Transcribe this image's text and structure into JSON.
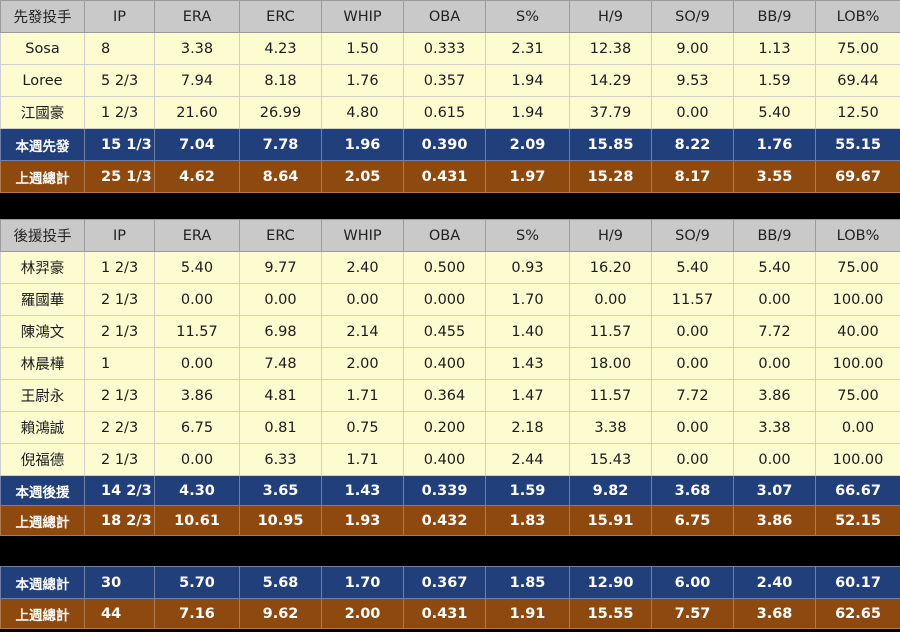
{
  "columns": [
    "IP",
    "ERA",
    "ERC",
    "WHIP",
    "OBA",
    "S%",
    "H/9",
    "SO/9",
    "BB/9",
    "LOB%"
  ],
  "starters": {
    "header": "先發投手",
    "rows": [
      {
        "name": "Sosa",
        "values": [
          "8",
          "3.38",
          "4.23",
          "1.50",
          "0.333",
          "2.31",
          "12.38",
          "9.00",
          "1.13",
          "75.00"
        ]
      },
      {
        "name": "Loree",
        "values": [
          "5 2/3",
          "7.94",
          "8.18",
          "1.76",
          "0.357",
          "1.94",
          "14.29",
          "9.53",
          "1.59",
          "69.44"
        ]
      },
      {
        "name": "江國豪",
        "values": [
          "1 2/3",
          "21.60",
          "26.99",
          "4.80",
          "0.615",
          "1.94",
          "37.79",
          "0.00",
          "5.40",
          "12.50"
        ]
      }
    ],
    "week_total": {
      "name": "本週先發",
      "values": [
        "15 1/3",
        "7.04",
        "7.78",
        "1.96",
        "0.390",
        "2.09",
        "15.85",
        "8.22",
        "1.76",
        "55.15"
      ]
    },
    "last_week": {
      "name": "上週總計",
      "values": [
        "25 1/3",
        "4.62",
        "8.64",
        "2.05",
        "0.431",
        "1.97",
        "15.28",
        "8.17",
        "3.55",
        "69.67"
      ]
    }
  },
  "relievers": {
    "header": "後援投手",
    "rows": [
      {
        "name": "林羿豪",
        "values": [
          "1 2/3",
          "5.40",
          "9.77",
          "2.40",
          "0.500",
          "0.93",
          "16.20",
          "5.40",
          "5.40",
          "75.00"
        ]
      },
      {
        "name": "羅國華",
        "values": [
          "2 1/3",
          "0.00",
          "0.00",
          "0.00",
          "0.000",
          "1.70",
          "0.00",
          "11.57",
          "0.00",
          "100.00"
        ]
      },
      {
        "name": "陳鴻文",
        "values": [
          "2 1/3",
          "11.57",
          "6.98",
          "2.14",
          "0.455",
          "1.40",
          "11.57",
          "0.00",
          "7.72",
          "40.00"
        ]
      },
      {
        "name": "林晨樺",
        "values": [
          "1",
          "0.00",
          "7.48",
          "2.00",
          "0.400",
          "1.43",
          "18.00",
          "0.00",
          "0.00",
          "100.00"
        ]
      },
      {
        "name": "王尉永",
        "values": [
          "2 1/3",
          "3.86",
          "4.81",
          "1.71",
          "0.364",
          "1.47",
          "11.57",
          "7.72",
          "3.86",
          "75.00"
        ]
      },
      {
        "name": "賴鴻誠",
        "values": [
          "2 2/3",
          "6.75",
          "0.81",
          "0.75",
          "0.200",
          "2.18",
          "3.38",
          "0.00",
          "3.38",
          "0.00"
        ]
      },
      {
        "name": "倪福德",
        "values": [
          "2 1/3",
          "0.00",
          "6.33",
          "1.71",
          "0.400",
          "2.44",
          "15.43",
          "0.00",
          "0.00",
          "100.00"
        ]
      }
    ],
    "week_total": {
      "name": "本週後援",
      "values": [
        "14 2/3",
        "4.30",
        "3.65",
        "1.43",
        "0.339",
        "1.59",
        "9.82",
        "3.68",
        "3.07",
        "66.67"
      ]
    },
    "last_week": {
      "name": "上週總計",
      "values": [
        "18 2/3",
        "10.61",
        "10.95",
        "1.93",
        "0.432",
        "1.83",
        "15.91",
        "6.75",
        "3.86",
        "52.15"
      ]
    }
  },
  "totals": {
    "week_total": {
      "name": "本週總計",
      "values": [
        "30",
        "5.70",
        "5.68",
        "1.70",
        "0.367",
        "1.85",
        "12.90",
        "6.00",
        "2.40",
        "60.17"
      ]
    },
    "last_week": {
      "name": "上週總計",
      "values": [
        "44",
        "7.16",
        "9.62",
        "2.00",
        "0.431",
        "1.91",
        "15.55",
        "7.57",
        "3.68",
        "62.65"
      ]
    }
  }
}
